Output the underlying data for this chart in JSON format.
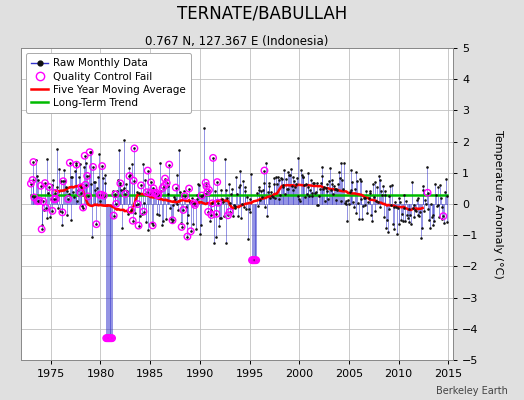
{
  "title": "TERNATE/BABULLAH",
  "subtitle": "0.767 N, 127.367 E (Indonesia)",
  "ylabel": "Temperature Anomaly (°C)",
  "attribution": "Berkeley Earth",
  "ylim": [
    -5,
    5
  ],
  "xlim": [
    1972.0,
    2015.5
  ],
  "yticks": [
    -5,
    -4,
    -3,
    -2,
    -1,
    0,
    1,
    2,
    3,
    4,
    5
  ],
  "xticks": [
    1975,
    1980,
    1985,
    1990,
    1995,
    2000,
    2005,
    2010,
    2015
  ],
  "long_term_trend_y": 0.28,
  "bg_color": "#e0e0e0",
  "plot_bg_color": "#ffffff",
  "line_color": "#3333cc",
  "dot_color": "#111111",
  "qc_color": "#ff00ff",
  "moving_avg_color": "#ff0000",
  "trend_color": "#00bb00",
  "seed": 42,
  "title_fontsize": 12,
  "subtitle_fontsize": 8.5,
  "ylabel_fontsize": 8,
  "tick_fontsize": 8,
  "legend_fontsize": 7.5,
  "attribution_fontsize": 7
}
